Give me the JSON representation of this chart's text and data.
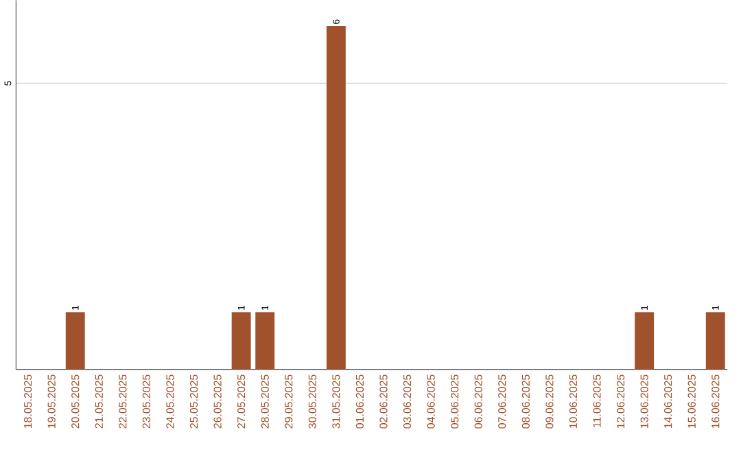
{
  "chart_data": {
    "type": "bar",
    "categories": [
      "18.05.2025",
      "19.05.2025",
      "20.05.2025",
      "21.05.2025",
      "22.05.2025",
      "23.05.2025",
      "24.05.2025",
      "25.05.2025",
      "26.05.2025",
      "27.05.2025",
      "28.05.2025",
      "29.05.2025",
      "30.05.2025",
      "31.05.2025",
      "01.06.2025",
      "02.06.2025",
      "03.06.2025",
      "04.06.2025",
      "05.06.2025",
      "06.06.2025",
      "07.06.2025",
      "08.06.2025",
      "09.06.2025",
      "10.06.2025",
      "11.06.2025",
      "12.06.2025",
      "13.06.2025",
      "14.06.2025",
      "15.06.2025",
      "16.06.2025"
    ],
    "values": [
      0,
      0,
      1,
      0,
      0,
      0,
      0,
      0,
      0,
      1,
      1,
      0,
      0,
      6,
      0,
      0,
      0,
      0,
      0,
      0,
      0,
      0,
      0,
      0,
      0,
      0,
      1,
      0,
      0,
      1
    ],
    "value_labels": [
      null,
      null,
      "1",
      null,
      null,
      null,
      null,
      null,
      null,
      "1",
      "1",
      null,
      null,
      "6",
      null,
      null,
      null,
      null,
      null,
      null,
      null,
      null,
      null,
      null,
      null,
      null,
      "1",
      null,
      null,
      "1"
    ],
    "color": "#a0522d",
    "ylim": [
      0,
      6.45
    ],
    "yticks": [
      5
    ],
    "grid": "y"
  }
}
